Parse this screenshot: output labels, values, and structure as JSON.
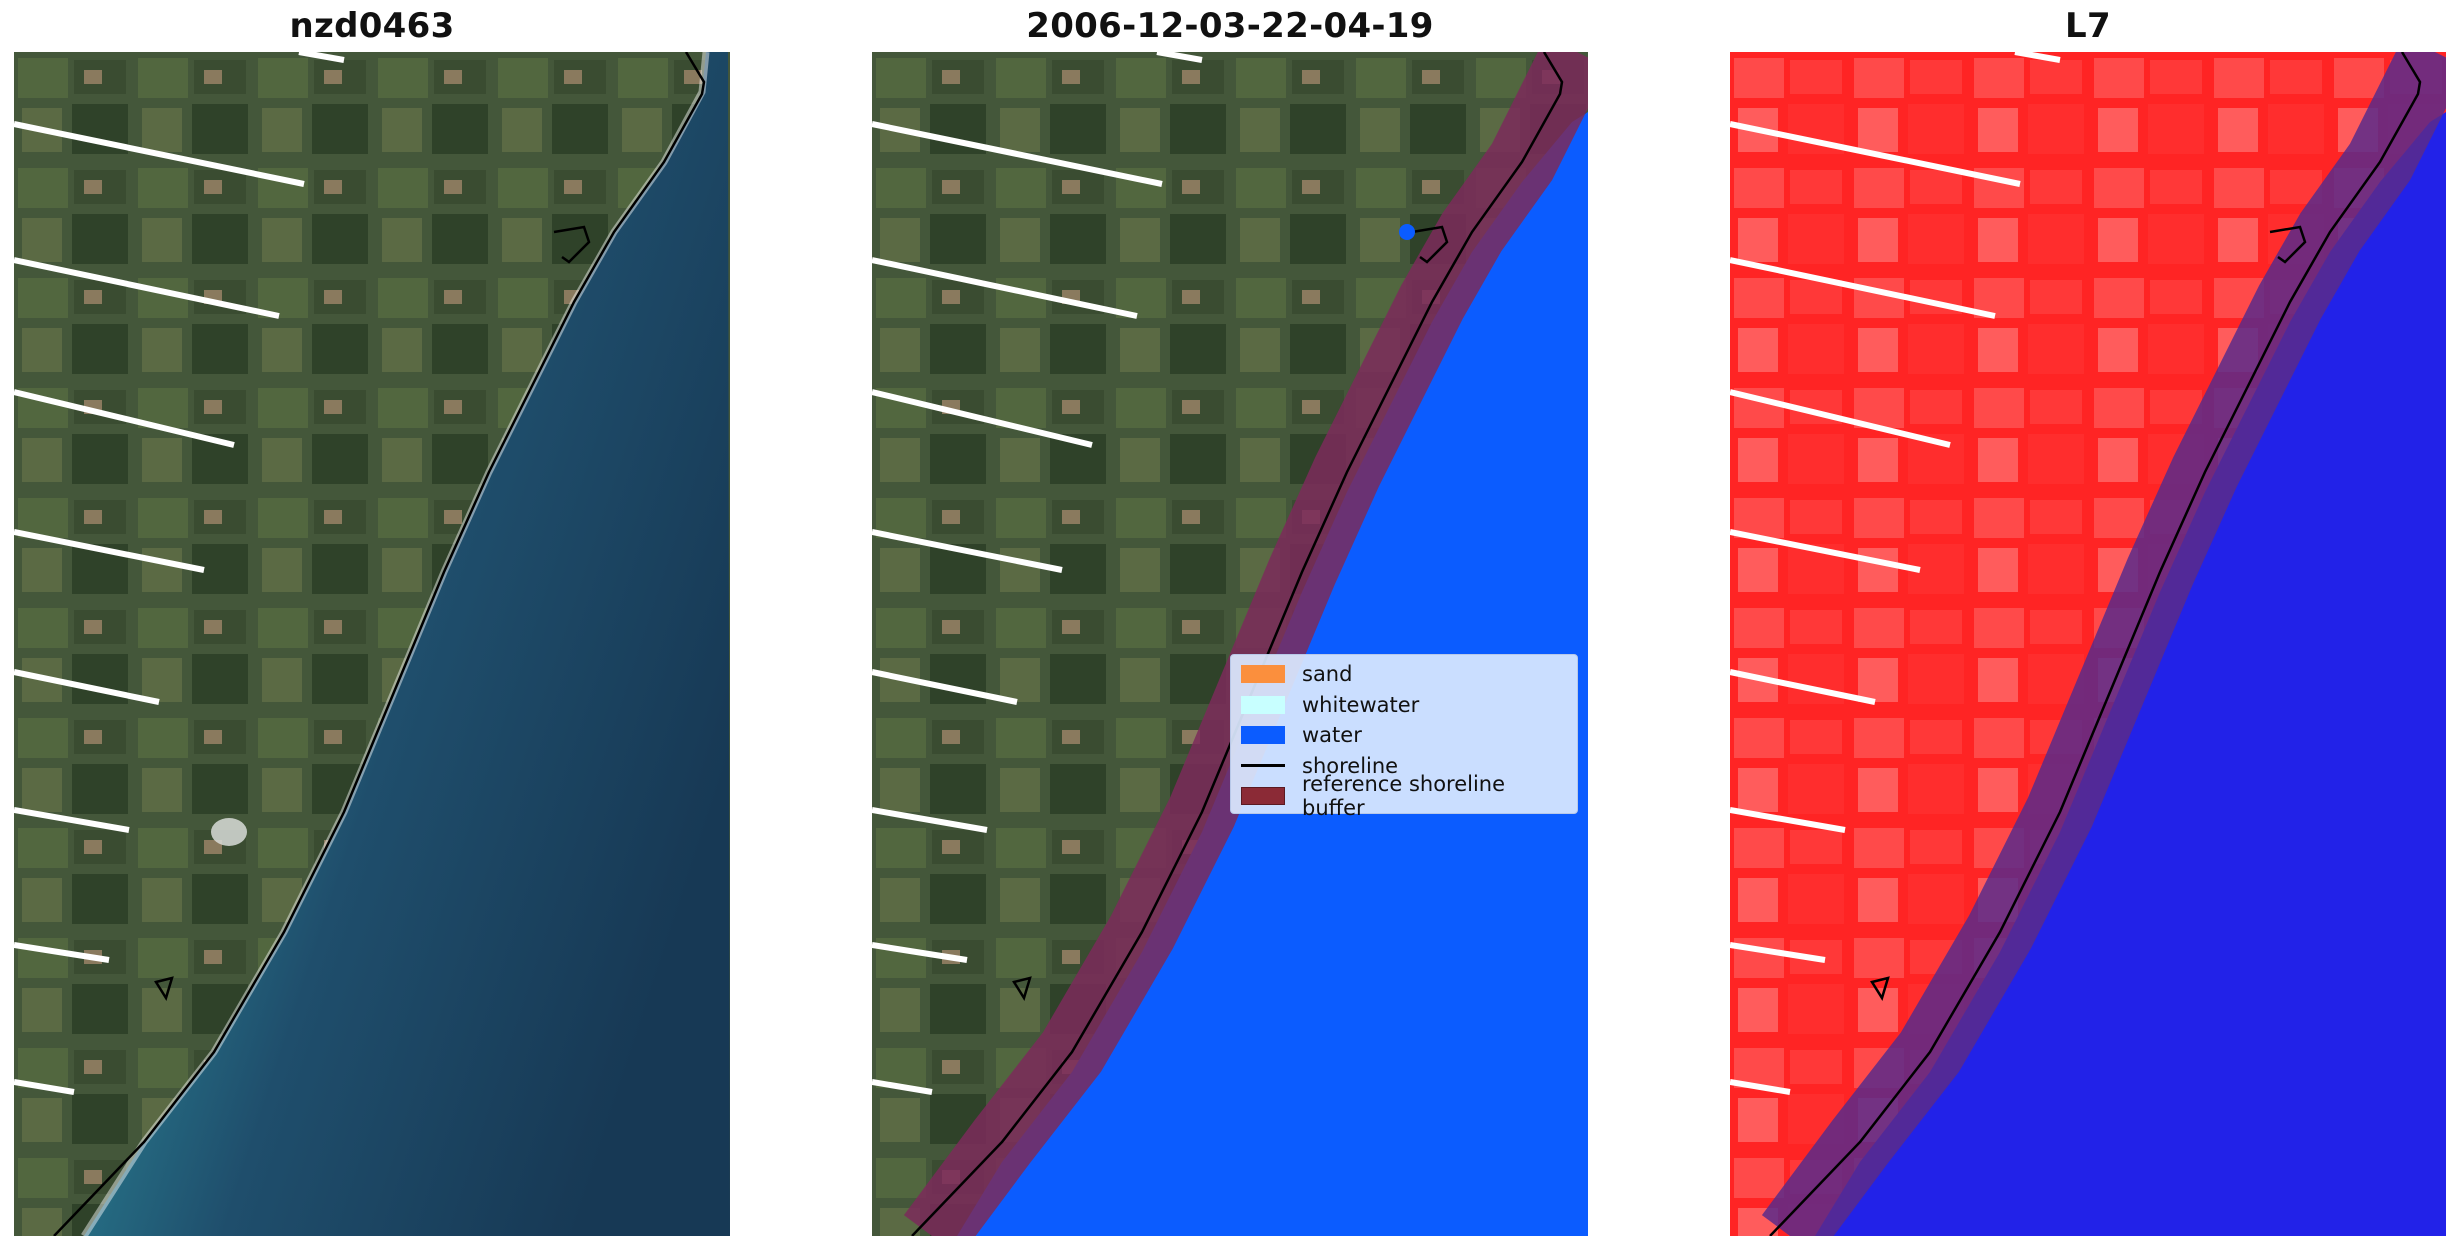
{
  "panels": [
    {
      "title": "nzd0463",
      "type": "rgb"
    },
    {
      "title": "2006-12-03-22-04-19",
      "type": "classified"
    },
    {
      "title": "L7",
      "type": "mndwi"
    }
  ],
  "legend": {
    "items": [
      {
        "label": "sand",
        "color": "#fb8f3d",
        "kind": "patch"
      },
      {
        "label": "whitewater",
        "color": "#c8ffff",
        "kind": "patch"
      },
      {
        "label": "water",
        "color": "#0b5cff",
        "kind": "patch"
      },
      {
        "label": "shoreline",
        "color": "#000000",
        "kind": "line"
      },
      {
        "label": "reference shoreline buffer",
        "color": "#8b2a36",
        "kind": "patch"
      }
    ]
  },
  "colors": {
    "land": "#4a5b3a",
    "sea_near": "#3aa7a8",
    "sea_far": "#193b57",
    "water_class": "#0b5cff",
    "buffer": "#8b2a36",
    "index_land": "#ff2a2a",
    "index_water": "#2222e8"
  }
}
